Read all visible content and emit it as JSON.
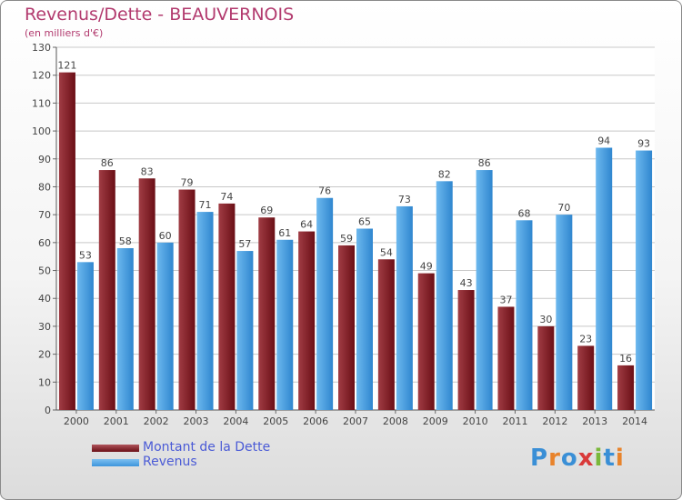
{
  "header": {
    "title": "Revenus/Dette - BEAUVERNOIS",
    "subtitle": "(en milliers d'€)"
  },
  "legend": {
    "items": [
      {
        "label": "Montant de la Dette",
        "color": "#6b0f16"
      },
      {
        "label": "Revenus",
        "color": "#3d95dc"
      }
    ]
  },
  "brand": {
    "logo_text": "Proxiti",
    "letter_colors": [
      "#3a8fd6",
      "#e8832b",
      "#3a8fd6",
      "#d93a3a",
      "#7ab83a",
      "#3a8fd6",
      "#e8832b"
    ]
  },
  "chart_data": {
    "type": "bar",
    "categories": [
      "2000",
      "2001",
      "2002",
      "2003",
      "2004",
      "2005",
      "2006",
      "2007",
      "2008",
      "2009",
      "2010",
      "2011",
      "2012",
      "2013",
      "2014"
    ],
    "series": [
      {
        "name": "Montant de la Dette",
        "color": "#6b0f16",
        "values": [
          121,
          86,
          83,
          79,
          74,
          69,
          64,
          59,
          54,
          49,
          43,
          37,
          30,
          23,
          16
        ]
      },
      {
        "name": "Revenus",
        "color": "#3d95dc",
        "values": [
          53,
          58,
          60,
          71,
          57,
          61,
          76,
          65,
          73,
          82,
          86,
          68,
          70,
          94,
          93
        ]
      }
    ],
    "ylim": [
      0,
      130
    ],
    "yticks": [
      0,
      10,
      20,
      30,
      40,
      50,
      60,
      70,
      80,
      90,
      100,
      110,
      120,
      130
    ],
    "grid": true,
    "legend_position": "bottom-left"
  }
}
